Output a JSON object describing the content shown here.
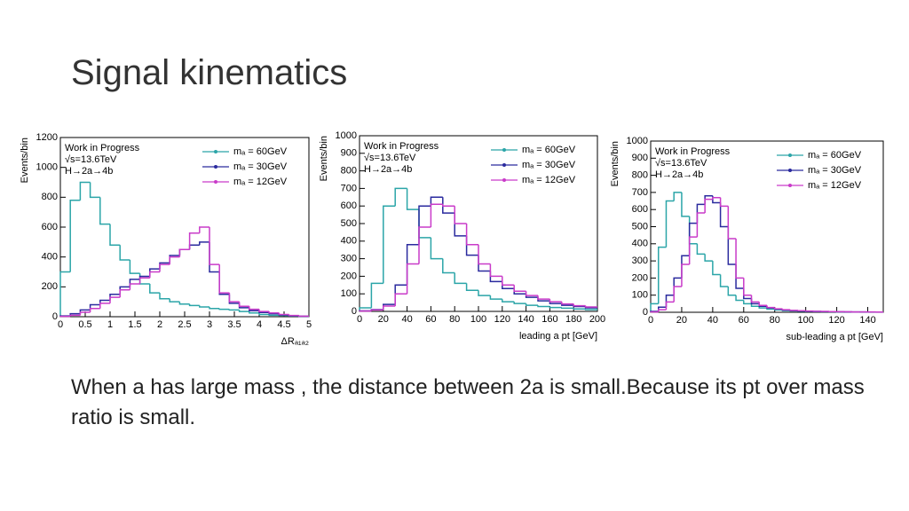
{
  "slide": {
    "title": "Signal kinematics",
    "text": "When  a has large mass , the distance between 2a is small.Because its pt over mass ratio is small."
  },
  "chart_data": [
    {
      "type": "histogram",
      "ylabel": "Events/bin",
      "xlabel": "ΔRₐ₁ₐ₂",
      "annotations": [
        "Work in Progress",
        "√s=13.6TeV",
        "H→2a→4b"
      ],
      "bins": [
        0,
        0.2,
        0.4,
        0.6,
        0.8,
        1,
        1.2,
        1.4,
        1.6,
        1.8,
        2,
        2.2,
        2.4,
        2.6,
        2.8,
        3,
        3.2,
        3.4,
        3.6,
        3.8,
        4,
        4.2,
        4.4,
        4.6,
        4.8,
        5
      ],
      "series": [
        {
          "name": "mₐ = 60GeV",
          "color": "#2ba5a8",
          "values": [
            300,
            780,
            900,
            800,
            620,
            480,
            380,
            290,
            220,
            160,
            120,
            100,
            85,
            75,
            65,
            55,
            50,
            45,
            35,
            25,
            15,
            10,
            8,
            5,
            3
          ]
        },
        {
          "name": "mₐ = 30GeV",
          "color": "#2a2a9e",
          "values": [
            5,
            20,
            45,
            80,
            110,
            150,
            200,
            250,
            270,
            320,
            360,
            410,
            450,
            480,
            500,
            300,
            150,
            90,
            60,
            40,
            28,
            20,
            12,
            6,
            3
          ]
        },
        {
          "name": "mₐ = 12GeV",
          "color": "#c93bc9",
          "values": [
            2,
            10,
            30,
            55,
            90,
            130,
            180,
            220,
            260,
            300,
            350,
            400,
            450,
            560,
            600,
            350,
            160,
            100,
            70,
            50,
            35,
            25,
            15,
            8,
            4
          ]
        }
      ],
      "xlim": [
        0,
        5
      ],
      "xticks": [
        0,
        0.5,
        1,
        1.5,
        2,
        2.5,
        3,
        3.5,
        4,
        4.5,
        5
      ],
      "ylim": [
        0,
        1200
      ],
      "yticks": [
        0,
        200,
        400,
        600,
        800,
        1000,
        1200
      ]
    },
    {
      "type": "histogram",
      "ylabel": "Events/bin",
      "xlabel": "leading a pt [GeV]",
      "annotations": [
        "Work in Progress",
        "√s=13.6TeV",
        "H→2a→4b"
      ],
      "bins": [
        0,
        10,
        20,
        30,
        40,
        50,
        60,
        70,
        80,
        90,
        100,
        110,
        120,
        130,
        140,
        150,
        160,
        170,
        180,
        190,
        200
      ],
      "series": [
        {
          "name": "mₐ = 60GeV",
          "color": "#2ba5a8",
          "values": [
            20,
            160,
            600,
            700,
            580,
            420,
            300,
            220,
            160,
            120,
            90,
            70,
            55,
            45,
            35,
            28,
            22,
            18,
            14,
            10
          ]
        },
        {
          "name": "mₐ = 30GeV",
          "color": "#2a2a9e",
          "values": [
            3,
            10,
            40,
            150,
            380,
            600,
            650,
            560,
            430,
            320,
            230,
            170,
            130,
            100,
            80,
            60,
            45,
            35,
            28,
            20
          ]
        },
        {
          "name": "mₐ = 12GeV",
          "color": "#c93bc9",
          "values": [
            2,
            8,
            30,
            100,
            270,
            480,
            610,
            600,
            500,
            380,
            270,
            200,
            150,
            115,
            90,
            70,
            55,
            42,
            32,
            25
          ]
        }
      ],
      "xlim": [
        0,
        200
      ],
      "xticks": [
        0,
        20,
        40,
        60,
        80,
        100,
        120,
        140,
        160,
        180,
        200
      ],
      "ylim": [
        0,
        1000
      ],
      "yticks": [
        0,
        100,
        200,
        300,
        400,
        500,
        600,
        700,
        800,
        900,
        1000
      ]
    },
    {
      "type": "histogram",
      "ylabel": "Events/bin",
      "xlabel": "sub-leading a pt [GeV]",
      "annotations": [
        "Work in Progress",
        "√s=13.6TeV",
        "H→2a→4b"
      ],
      "bins": [
        0,
        5,
        10,
        15,
        20,
        25,
        30,
        35,
        40,
        45,
        50,
        55,
        60,
        65,
        70,
        75,
        80,
        85,
        90,
        95,
        100,
        105,
        110,
        115,
        120,
        125,
        130,
        135,
        140,
        145,
        150
      ],
      "series": [
        {
          "name": "mₐ = 60GeV",
          "color": "#2ba5a8",
          "values": [
            50,
            380,
            650,
            700,
            560,
            400,
            340,
            300,
            220,
            150,
            100,
            70,
            50,
            35,
            25,
            18,
            14,
            10,
            8,
            6,
            5,
            4,
            3,
            3,
            2,
            2,
            1,
            1,
            1,
            1
          ]
        },
        {
          "name": "mₐ = 30GeV",
          "color": "#2a2a9e",
          "values": [
            5,
            30,
            100,
            200,
            330,
            520,
            630,
            680,
            640,
            500,
            280,
            140,
            80,
            50,
            35,
            25,
            18,
            13,
            10,
            8,
            6,
            5,
            4,
            3,
            3,
            2,
            2,
            2,
            1,
            1
          ]
        },
        {
          "name": "mₐ = 12GeV",
          "color": "#c93bc9",
          "values": [
            2,
            15,
            60,
            150,
            280,
            440,
            580,
            660,
            670,
            620,
            430,
            200,
            100,
            60,
            40,
            28,
            20,
            15,
            11,
            9,
            7,
            6,
            5,
            4,
            3,
            3,
            2,
            2,
            2,
            1
          ]
        }
      ],
      "xlim": [
        0,
        150
      ],
      "xticks": [
        0,
        20,
        40,
        60,
        80,
        100,
        120,
        140
      ],
      "ylim": [
        0,
        1000
      ],
      "yticks": [
        0,
        100,
        200,
        300,
        400,
        500,
        600,
        700,
        800,
        900,
        1000
      ]
    }
  ]
}
